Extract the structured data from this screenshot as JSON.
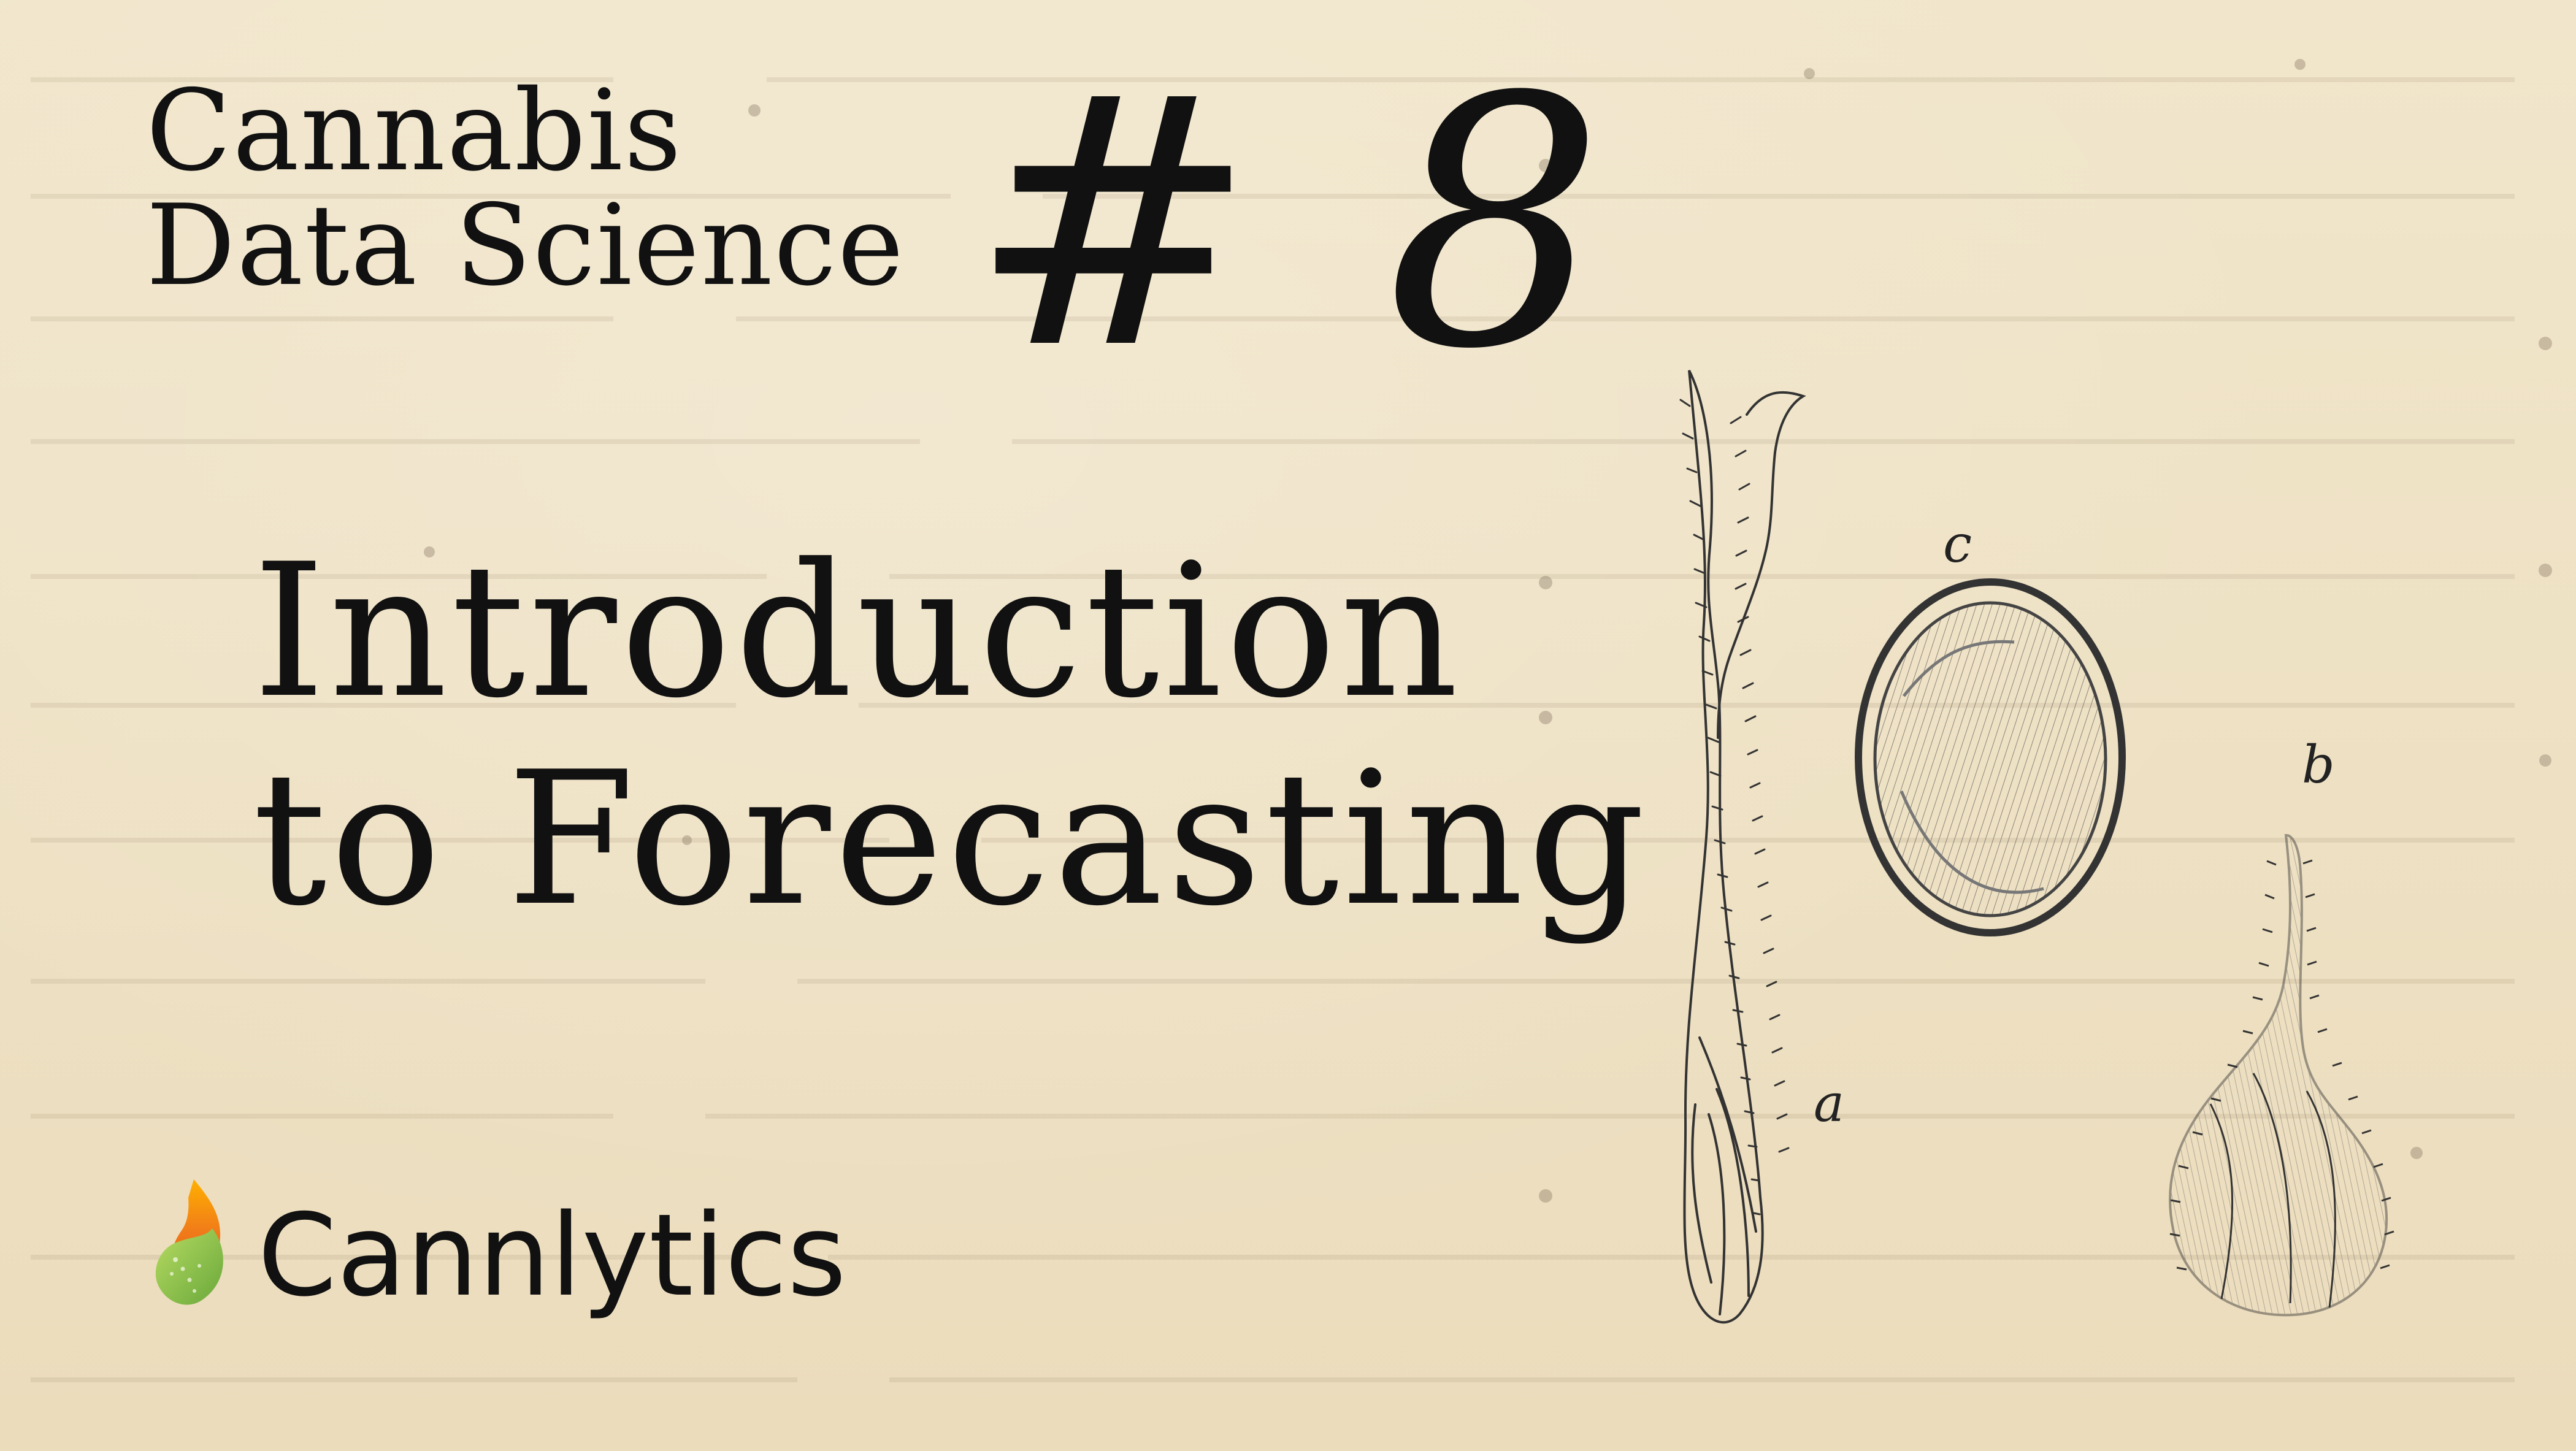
{
  "series": {
    "line1": "Cannabis",
    "line2": "Data Science"
  },
  "episode": {
    "number": "# 8"
  },
  "title": {
    "line1": "Introduction",
    "line2": "to Forecasting"
  },
  "brand": {
    "name": "Cannlytics",
    "logo_icon": "flame-leaf-icon"
  },
  "illustration": {
    "labels": {
      "a": "a",
      "b": "b",
      "c": "c"
    }
  },
  "colors": {
    "paper": "#efe3c8",
    "ink": "#111111",
    "brand_orange": "#f07a1a",
    "brand_green": "#8bc34a"
  }
}
